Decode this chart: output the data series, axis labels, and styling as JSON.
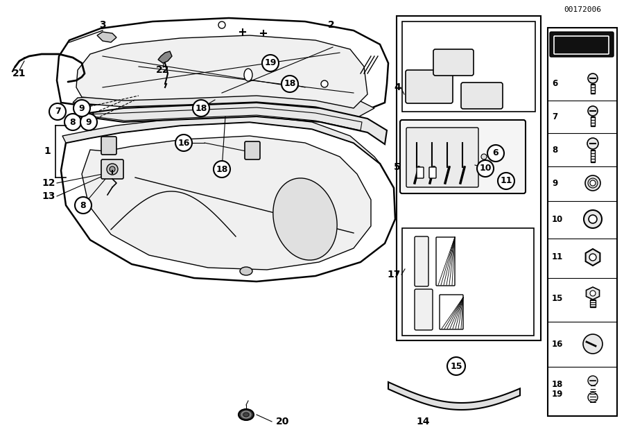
{
  "bg_color": "#ffffff",
  "figure_number": "00172006",
  "line_color": "#000000",
  "lw_main": 1.5,
  "lw_thin": 0.8,
  "lw_thick": 2.0
}
